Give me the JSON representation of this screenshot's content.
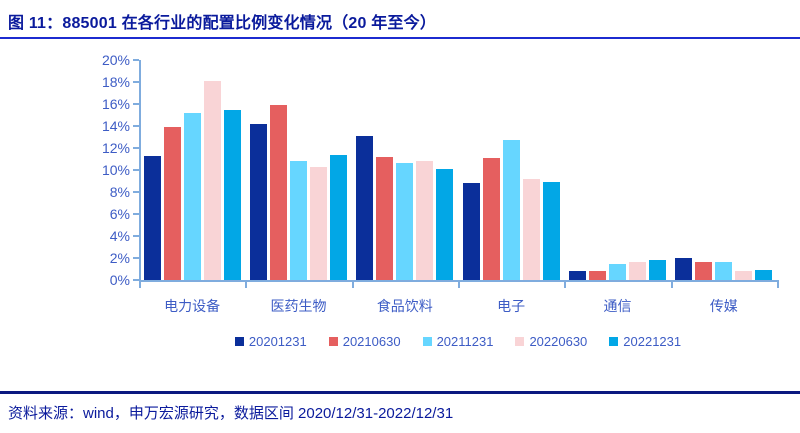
{
  "header": {
    "title": "图 11：885001 在各行业的配置比例变化情况（20 年至今）"
  },
  "footer": {
    "source_note": "资料来源：wind，申万宏源研究，数据区间 2020/12/31-2022/12/31"
  },
  "colors": {
    "title_text": "#0A1A9C",
    "title_underline": "#1C2BD0",
    "footer_line": "#0A1880",
    "axis_line": "#7FACDE",
    "axis_label_text": "#3D5CC5",
    "legend_text": "#3D5CC5"
  },
  "chart_data": {
    "type": "bar",
    "title": "",
    "xlabel": "",
    "ylabel": "",
    "ylim": [
      0,
      20
    ],
    "y_tick_step": 2,
    "y_ticks": [
      "20%",
      "18%",
      "16%",
      "14%",
      "12%",
      "10%",
      "8%",
      "6%",
      "4%",
      "2%",
      "0%"
    ],
    "grid": false,
    "legend_position": "bottom",
    "categories": [
      "电力设备",
      "医药生物",
      "食品饮料",
      "电子",
      "通信",
      "传媒"
    ],
    "series": [
      {
        "name": "20201231",
        "color": "#0B2F9A",
        "values": [
          11.3,
          14.2,
          13.1,
          8.8,
          0.8,
          2.0
        ]
      },
      {
        "name": "20210630",
        "color": "#E55F5F",
        "values": [
          13.9,
          15.9,
          11.2,
          11.1,
          0.8,
          1.6
        ]
      },
      {
        "name": "20211231",
        "color": "#66D6FF",
        "values": [
          15.2,
          10.8,
          10.6,
          12.7,
          1.5,
          1.6
        ]
      },
      {
        "name": "20220630",
        "color": "#F9D4D6",
        "values": [
          18.1,
          10.3,
          10.8,
          9.2,
          1.6,
          0.8
        ]
      },
      {
        "name": "20221231",
        "color": "#02A7E6",
        "values": [
          15.5,
          11.4,
          10.1,
          8.9,
          1.8,
          0.9
        ]
      }
    ]
  }
}
